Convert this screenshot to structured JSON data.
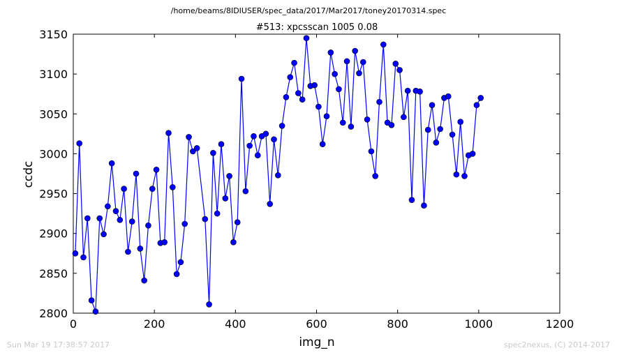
{
  "header": {
    "file_path": "/home/beams/8IDIUSER/spec_data/2017/Mar2017/toney20170314.spec",
    "scan_title": "#513: xpcsscan 1005 0.08"
  },
  "footer": {
    "timestamp": "Sun Mar 19 17:38:57 2017",
    "credit": "spec2nexus, (C) 2014-2017"
  },
  "chart_data": {
    "type": "line",
    "title": "#513: xpcsscan 1005 0.08",
    "xlabel": "img_n",
    "ylabel": "ccdc",
    "xlim": [
      0,
      1200
    ],
    "ylim": [
      2800,
      3150
    ],
    "xticks": [
      0,
      200,
      400,
      600,
      800,
      1000,
      1200
    ],
    "yticks": [
      2800,
      2850,
      2900,
      2950,
      3000,
      3050,
      3100,
      3150
    ],
    "grid": false,
    "series": [
      {
        "color": "#0000ff",
        "marker": "circle",
        "x": [
          5,
          15,
          25,
          35,
          45,
          55,
          65,
          75,
          85,
          95,
          105,
          115,
          125,
          135,
          145,
          155,
          165,
          175,
          185,
          195,
          205,
          215,
          225,
          235,
          245,
          255,
          265,
          275,
          285,
          295,
          305,
          325,
          335,
          345,
          355,
          365,
          375,
          385,
          395,
          405,
          415,
          425,
          435,
          445,
          455,
          465,
          475,
          485,
          495,
          505,
          515,
          525,
          535,
          545,
          555,
          565,
          575,
          585,
          595,
          605,
          615,
          625,
          635,
          645,
          655,
          665,
          675,
          685,
          695,
          705,
          715,
          725,
          735,
          745,
          755,
          765,
          775,
          785,
          795,
          805,
          815,
          825,
          835,
          845,
          855,
          865,
          875,
          885,
          895,
          905,
          915,
          925,
          935,
          945,
          955,
          965,
          975,
          985,
          995,
          1005
        ],
        "y": [
          2875,
          3013,
          2870,
          2919,
          2816,
          2802,
          2919,
          2899,
          2934,
          2988,
          2928,
          2917,
          2956,
          2877,
          2915,
          2975,
          2881,
          2841,
          2910,
          2956,
          2980,
          2888,
          2889,
          3026,
          2958,
          2849,
          2864,
          2912,
          3021,
          3003,
          3007,
          2918,
          2811,
          3001,
          2925,
          3012,
          2944,
          2972,
          2889,
          2914,
          3094,
          2953,
          3010,
          3022,
          2998,
          3022,
          3025,
          2937,
          3018,
          2973,
          3035,
          3071,
          3096,
          3114,
          3076,
          3068,
          3145,
          3085,
          3086,
          3059,
          3012,
          3047,
          3127,
          3100,
          3081,
          3039,
          3116,
          3034,
          3129,
          3101,
          3115,
          3043,
          3003,
          2972,
          3065,
          3137,
          3039,
          3036,
          3113,
          3105,
          3046,
          3079,
          2942,
          3079,
          3078,
          2935,
          3030,
          3061,
          3014,
          3031,
          3070,
          3072,
          3024,
          2974,
          3040,
          2972,
          2998,
          3000,
          3061,
          3070
        ]
      }
    ]
  }
}
